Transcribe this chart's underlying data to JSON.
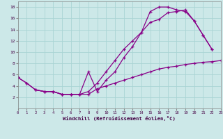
{
  "background_color": "#cce8e8",
  "line_color": "#880088",
  "grid_color": "#aad4d4",
  "xlabel": "Windchill (Refroidissement éolien,°C)",
  "xlim": [
    0,
    23
  ],
  "ylim": [
    0,
    19
  ],
  "yticks": [
    2,
    4,
    6,
    8,
    10,
    12,
    14,
    16,
    18
  ],
  "xticks": [
    0,
    1,
    2,
    3,
    4,
    5,
    6,
    7,
    8,
    9,
    10,
    11,
    12,
    13,
    14,
    15,
    16,
    17,
    18,
    19,
    20,
    21,
    22,
    23
  ],
  "curve1_x": [
    0,
    1,
    2,
    3,
    4,
    5,
    6,
    7,
    8,
    9,
    10,
    11,
    12,
    13,
    14,
    15,
    16,
    17,
    18,
    19,
    20,
    21,
    22
  ],
  "curve1_y": [
    5.5,
    4.5,
    3.3,
    3.0,
    3.0,
    2.5,
    2.5,
    2.5,
    3.0,
    4.5,
    6.5,
    8.5,
    10.5,
    12.0,
    13.5,
    17.2,
    18.0,
    18.0,
    17.5,
    17.2,
    15.5,
    13.0,
    10.5
  ],
  "curve2_x": [
    0,
    1,
    2,
    3,
    4,
    5,
    6,
    7,
    8,
    9,
    10,
    11,
    12,
    13,
    14,
    15,
    16,
    17,
    18,
    19,
    20,
    21,
    22
  ],
  "curve2_y": [
    5.5,
    4.5,
    3.3,
    3.0,
    3.0,
    2.5,
    2.5,
    2.5,
    6.5,
    3.0,
    5.0,
    6.5,
    9.0,
    11.0,
    13.5,
    15.3,
    15.8,
    17.0,
    17.2,
    17.5,
    15.5,
    13.0,
    10.5
  ],
  "curve3_x": [
    2,
    3,
    4,
    5,
    6,
    7,
    8,
    9,
    10,
    11,
    12,
    13,
    14,
    15,
    16,
    17,
    18,
    19,
    20,
    21,
    22,
    23
  ],
  "curve3_y": [
    3.3,
    3.0,
    3.0,
    2.5,
    2.5,
    2.5,
    2.5,
    3.5,
    4.0,
    4.5,
    5.0,
    5.5,
    6.0,
    6.5,
    7.0,
    7.3,
    7.5,
    7.8,
    8.0,
    8.2,
    8.3,
    8.5
  ]
}
